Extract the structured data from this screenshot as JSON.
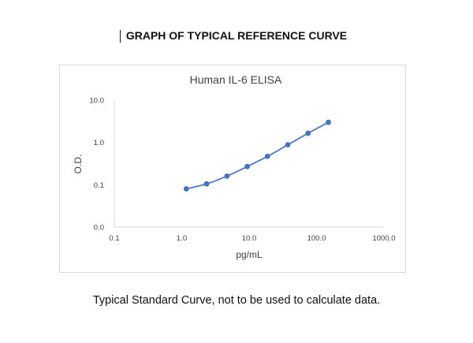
{
  "page": {
    "heading": "GRAPH OF TYPICAL REFERENCE CURVE",
    "caption": "Typical Standard Curve, not to be used to calculate data."
  },
  "chart_data": {
    "type": "line",
    "title": "Human IL-6 ELISA",
    "xlabel": "pg/mL",
    "ylabel": "O.D.",
    "x_scale": "log",
    "y_scale": "log",
    "xlim": [
      0.1,
      1000
    ],
    "ylim": [
      0.01,
      10
    ],
    "x_ticks": [
      {
        "value": 0.1,
        "label": "0.1"
      },
      {
        "value": 1,
        "label": "1.0"
      },
      {
        "value": 10,
        "label": "10.0"
      },
      {
        "value": 100,
        "label": "100.0"
      },
      {
        "value": 1000,
        "label": "1000.0"
      }
    ],
    "y_ticks": [
      {
        "value": 0.01,
        "label": "0.0"
      },
      {
        "value": 0.1,
        "label": "0.1"
      },
      {
        "value": 1,
        "label": "1.0"
      },
      {
        "value": 10,
        "label": "10.0"
      }
    ],
    "grid": false,
    "legend": "none",
    "series": [
      {
        "color": "#4472c4",
        "x": [
          1.17,
          2.34,
          4.69,
          9.38,
          18.75,
          37.5,
          75,
          150
        ],
        "y": [
          0.08,
          0.105,
          0.16,
          0.27,
          0.47,
          0.88,
          1.65,
          3.0
        ]
      }
    ]
  }
}
